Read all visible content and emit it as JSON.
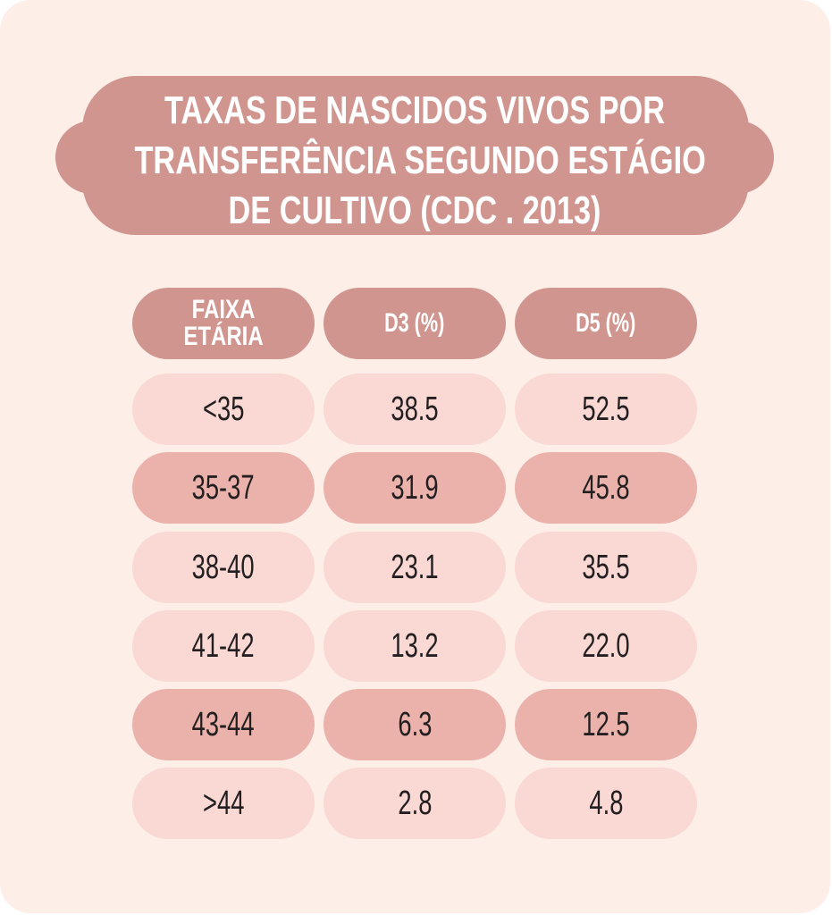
{
  "title_lines": [
    "TAXAS DE NASCIDOS VIVOS POR",
    "TRANSFERÊNCIA SEGUNDO ESTÁGIO",
    "DE CULTIVO (CDC . 2013)"
  ],
  "colors": {
    "background": "#fdeee8",
    "header": "#d0958f",
    "row_light": "#fad8d4",
    "row_dark": "#ebb2ab",
    "text": "#231f20"
  },
  "chart_data": {
    "type": "table",
    "title": "TAXAS DE NASCIDOS VIVOS POR TRANSFERÊNCIA SEGUNDO ESTÁGIO DE CULTIVO (CDC . 2013)",
    "columns": [
      "FAIXA ETÁRIA",
      "D3 (%)",
      "D5 (%)"
    ],
    "rows": [
      [
        "<35",
        "38.5",
        "52.5"
      ],
      [
        "35-37",
        "31.9",
        "45.8"
      ],
      [
        "38-40",
        "23.1",
        "35.5"
      ],
      [
        "41-42",
        "13.2",
        "22.0"
      ],
      [
        "43-44",
        "6.3",
        "12.5"
      ],
      [
        ">44",
        "2.8",
        "4.8"
      ]
    ],
    "row_shading": [
      "light",
      "dark",
      "light",
      "light",
      "dark",
      "light"
    ]
  }
}
